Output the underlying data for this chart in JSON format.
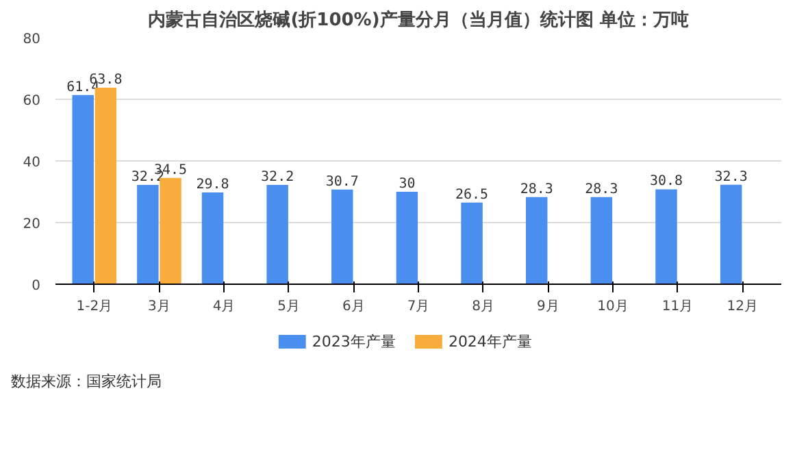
{
  "chart_data": {
    "type": "bar",
    "title": "内蒙古自治区烧碱(折100%)产量分月（当月值）统计图 单位：万吨",
    "categories": [
      "1-2月",
      "3月",
      "4月",
      "5月",
      "6月",
      "7月",
      "8月",
      "9月",
      "10月",
      "11月",
      "12月"
    ],
    "series": [
      {
        "name": "2023年产量",
        "color": "#4a8ef0",
        "values": [
          61.4,
          32.2,
          29.8,
          32.2,
          30.7,
          30,
          26.5,
          28.3,
          28.3,
          30.8,
          32.3
        ]
      },
      {
        "name": "2024年产量",
        "color": "#f8ac3c",
        "values": [
          63.8,
          34.5,
          null,
          null,
          null,
          null,
          null,
          null,
          null,
          null,
          null
        ]
      }
    ],
    "ylim": [
      0,
      80
    ],
    "yticks": [
      0,
      20,
      40,
      60,
      80
    ],
    "grid": "y",
    "legend": "bottom",
    "data_labels": true,
    "annotations": [
      "数据来源：国家统计局"
    ]
  }
}
